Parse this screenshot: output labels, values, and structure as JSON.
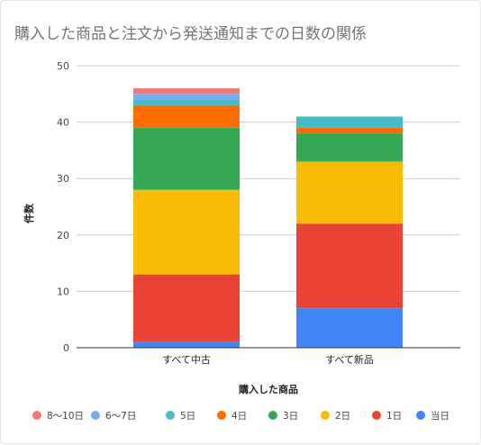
{
  "chart_data": {
    "type": "bar",
    "stacked": true,
    "title": "購入した商品と注文から発送通知までの日数の関係",
    "xlabel": "購入した商品",
    "ylabel": "件数",
    "ylim": [
      0,
      50
    ],
    "yticks": [
      0,
      10,
      20,
      30,
      40,
      50
    ],
    "grid": true,
    "legend_position": "bottom",
    "categories": [
      "すべて中古",
      "すべて新品"
    ],
    "series": [
      {
        "name": "当日",
        "color": "#4285F4",
        "values": [
          1,
          7
        ]
      },
      {
        "name": "1日",
        "color": "#EA4335",
        "values": [
          12,
          15
        ]
      },
      {
        "name": "2日",
        "color": "#FBBC04",
        "values": [
          15,
          11
        ]
      },
      {
        "name": "3日",
        "color": "#34A853",
        "values": [
          11,
          5
        ]
      },
      {
        "name": "4日",
        "color": "#FF6D01",
        "values": [
          4,
          1
        ]
      },
      {
        "name": "5日",
        "color": "#46BDC6",
        "values": [
          1,
          2
        ]
      },
      {
        "name": "6〜7日",
        "color": "#7BAAF7",
        "values": [
          1,
          0
        ]
      },
      {
        "name": "8〜10日",
        "color": "#F07B72",
        "values": [
          1,
          0
        ]
      }
    ]
  }
}
